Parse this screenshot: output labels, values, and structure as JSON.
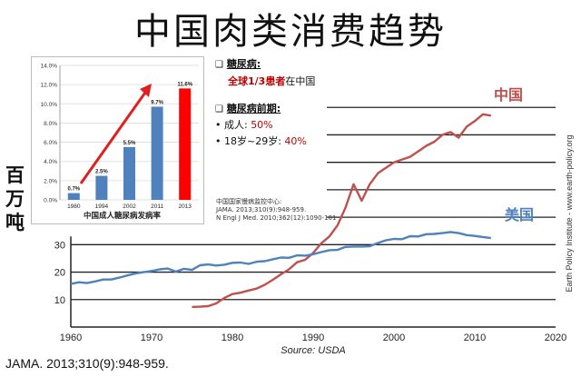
{
  "slide": {
    "title": "中国肉类消费趋势",
    "y_unit_label": "百万吨",
    "citation": "JAMA. 2013;310(9):948-959.",
    "side_watermark": "Earth Policy Institute - www.earth-policy.org",
    "notes": {
      "diabetes_head": "糖尿病:",
      "diabetes_line_red": "全球1/3患者",
      "diabetes_line_rest": "在中国",
      "prediabetes_head": "糖尿病前期:",
      "adult_label": "• 成人: ",
      "adult_value": "50%",
      "youth_label": "• 18岁~29岁: ",
      "youth_value": "40%",
      "checkbox_glyph": "❑"
    },
    "small_citation": [
      "中国国家慢病监控中心:",
      "JAMA. 2013;310(9):948-959.",
      "N Engl J Med. 2010;362(12):1090-101"
    ]
  },
  "chart_data": [
    {
      "type": "line",
      "title": "",
      "xlabel": "",
      "ylabel": "百万吨",
      "source": "Source: USDA",
      "xlim": [
        1960,
        2020
      ],
      "ylim": [
        0,
        90
      ],
      "x_ticks": [
        "1960",
        "1970",
        "1980",
        "1990",
        "2000",
        "2010",
        "2020"
      ],
      "y_ticks": [
        "10",
        "20",
        "30"
      ],
      "grid": true,
      "series": [
        {
          "name": "中国",
          "color": "#c0504d",
          "x": [
            1975,
            1976,
            1977,
            1978,
            1979,
            1980,
            1981,
            1982,
            1983,
            1984,
            1985,
            1986,
            1987,
            1988,
            1989,
            1990,
            1991,
            1992,
            1993,
            1994,
            1995,
            1996,
            1997,
            1998,
            1999,
            2000,
            2001,
            2002,
            2003,
            2004,
            2005,
            2006,
            2007,
            2008,
            2009,
            2010,
            2011,
            2012
          ],
          "y": [
            7.3,
            7.4,
            7.6,
            8.6,
            10.6,
            12.0,
            12.5,
            13.3,
            14.0,
            15.4,
            17.2,
            19.2,
            21.0,
            23.6,
            24.5,
            27.0,
            30.5,
            33.0,
            37.0,
            43.5,
            52.0,
            46.0,
            52.0,
            56.0,
            58.0,
            60.0,
            61.0,
            62.0,
            64.0,
            66.0,
            67.5,
            70.0,
            71.0,
            69.0,
            73.0,
            75.0,
            77.5,
            77.0
          ]
        },
        {
          "name": "美国",
          "color": "#4f81bd",
          "x": [
            1960,
            1961,
            1962,
            1963,
            1964,
            1965,
            1966,
            1967,
            1968,
            1969,
            1970,
            1971,
            1972,
            1973,
            1974,
            1975,
            1976,
            1977,
            1978,
            1979,
            1980,
            1981,
            1982,
            1983,
            1984,
            1985,
            1986,
            1987,
            1988,
            1989,
            1990,
            1991,
            1992,
            1993,
            1994,
            1995,
            1996,
            1997,
            1998,
            1999,
            2000,
            2001,
            2002,
            2003,
            2004,
            2005,
            2006,
            2007,
            2008,
            2009,
            2010,
            2011,
            2012
          ],
          "y": [
            15.7,
            16.3,
            16.0,
            16.6,
            17.3,
            17.3,
            18.0,
            18.8,
            19.5,
            20.0,
            20.4,
            21.0,
            21.3,
            20.2,
            21.2,
            20.8,
            22.5,
            22.8,
            22.4,
            22.7,
            23.4,
            23.5,
            23.0,
            23.8,
            24.0,
            24.7,
            25.3,
            25.2,
            26.1,
            26.0,
            26.5,
            27.3,
            28.0,
            28.1,
            29.2,
            29.3,
            29.3,
            29.4,
            30.6,
            31.6,
            32.1,
            32.0,
            33.1,
            33.0,
            33.8,
            33.9,
            34.2,
            34.6,
            34.2,
            33.5,
            33.2,
            32.8,
            32.4
          ]
        }
      ]
    },
    {
      "type": "bar",
      "title": "中国成人糖尿病发病率",
      "categories": [
        "1980",
        "1994",
        "2002",
        "2011",
        "2013"
      ],
      "values": [
        0.7,
        2.5,
        5.5,
        9.7,
        11.6
      ],
      "value_labels": [
        "0.7%",
        "2.5%",
        "5.5%",
        "9.7%",
        "11.6%"
      ],
      "bar_colors": [
        "#4f81bd",
        "#4f81bd",
        "#4f81bd",
        "#4f81bd",
        "#ff0000"
      ],
      "ylim": [
        0,
        14
      ],
      "y_ticks": [
        "0.0%",
        "2.0%",
        "4.0%",
        "6.0%",
        "8.0%",
        "10.0%",
        "12.0%",
        "14.0%"
      ],
      "grid": true,
      "trend_arrow_color": "#e02020"
    }
  ]
}
